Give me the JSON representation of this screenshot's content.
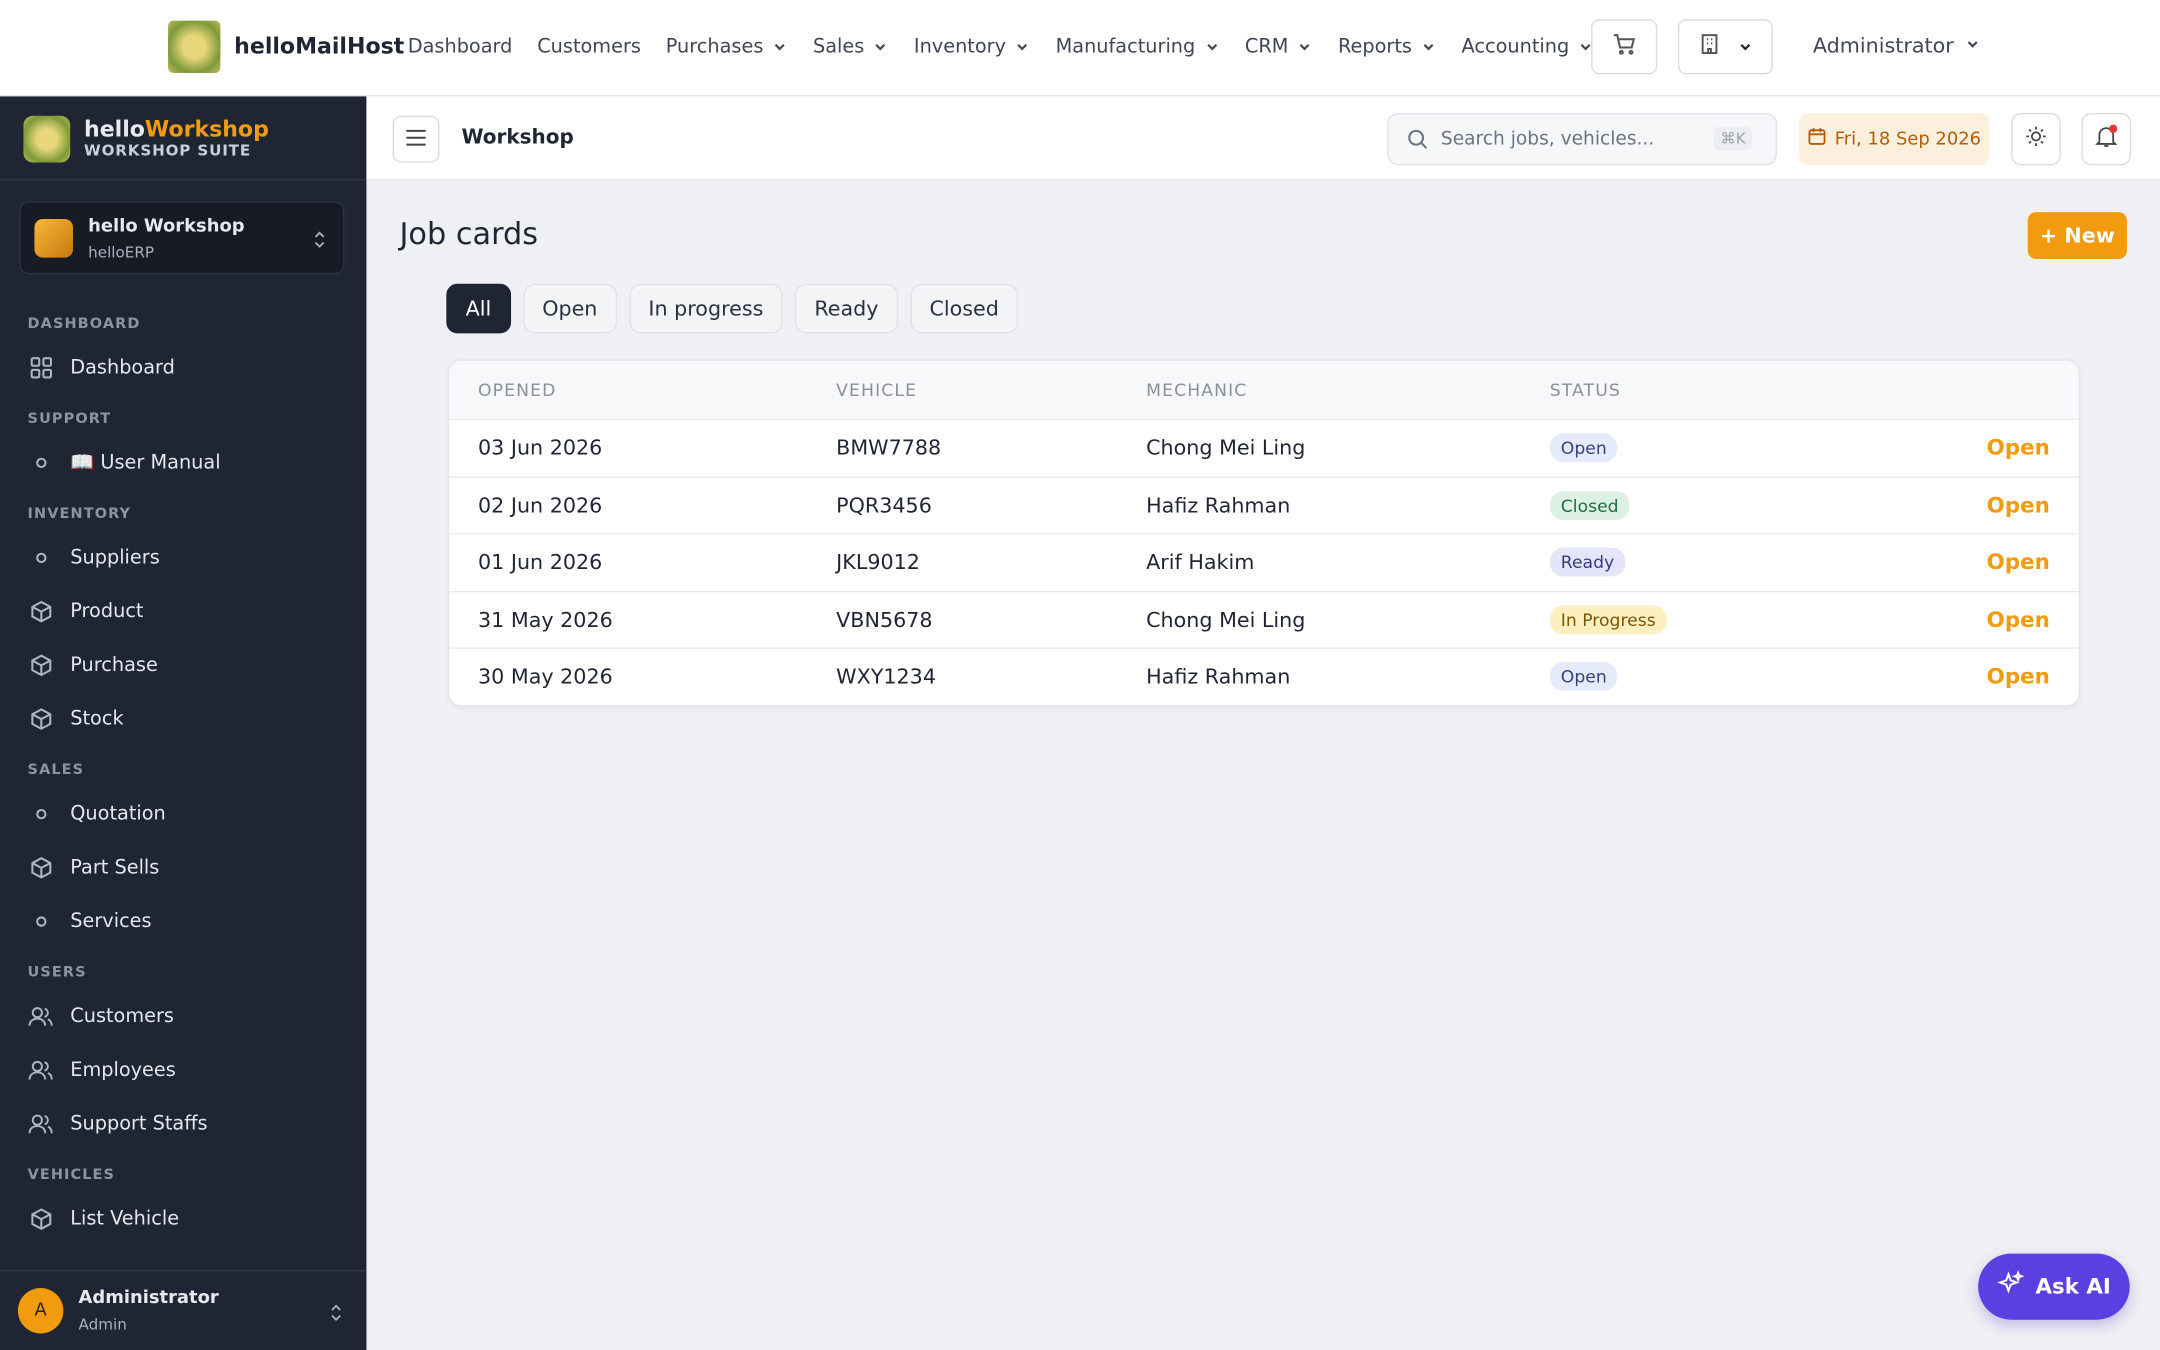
{
  "topnav": {
    "brand": "helloMailHost",
    "links": [
      "Dashboard",
      "Customers",
      "Purchases",
      "Sales",
      "Inventory",
      "Manufacturing",
      "CRM",
      "Reports",
      "Accounting"
    ],
    "user": "Administrator"
  },
  "sidebar": {
    "brand_hello": "hello",
    "brand_workshop": "Workshop",
    "brand_sub": "WORKSHOP SUITE",
    "org": {
      "name": "hello Workshop",
      "sub": "helloERP"
    },
    "sections": [
      {
        "title": "DASHBOARD",
        "items": [
          "Dashboard"
        ]
      },
      {
        "title": "SUPPORT",
        "items": [
          "📖 User Manual"
        ]
      },
      {
        "title": "INVENTORY",
        "items": [
          "Suppliers",
          "Product",
          "Purchase",
          "Stock"
        ]
      },
      {
        "title": "SALES",
        "items": [
          "Quotation",
          "Part Sells",
          "Services"
        ]
      },
      {
        "title": "USERS",
        "items": [
          "Customers",
          "Employees",
          "Support Staffs"
        ]
      },
      {
        "title": "VEHICLES",
        "items": [
          "List Vehicle"
        ]
      }
    ],
    "user": {
      "initial": "A",
      "name": "Administrator",
      "role": "Admin"
    }
  },
  "header": {
    "title": "Workshop",
    "search_placeholder": "Search jobs, vehicles...",
    "shortcut": "⌘K",
    "date": "Fri, 18 Sep 2026"
  },
  "page": {
    "title": "Job cards",
    "new_button": "+ New",
    "filters": [
      "All",
      "Open",
      "In progress",
      "Ready",
      "Closed"
    ],
    "table": {
      "columns": [
        "OPENED",
        "VEHICLE",
        "MECHANIC",
        "STATUS"
      ],
      "rows": [
        [
          "03 Jun 2026",
          "BMW7788",
          "Chong Mei Ling",
          "Open",
          "Open"
        ],
        [
          "02 Jun 2026",
          "PQR3456",
          "Hafiz Rahman",
          "Closed",
          "Open"
        ],
        [
          "01 Jun 2026",
          "JKL9012",
          "Arif Hakim",
          "Ready",
          "Open"
        ],
        [
          "31 May 2026",
          "VBN5678",
          "Chong Mei Ling",
          "In Progress",
          "Open"
        ],
        [
          "30 May 2026",
          "WXY1234",
          "Hafiz Rahman",
          "Open",
          "Open"
        ]
      ]
    }
  },
  "ask_ai": "Ask AI"
}
